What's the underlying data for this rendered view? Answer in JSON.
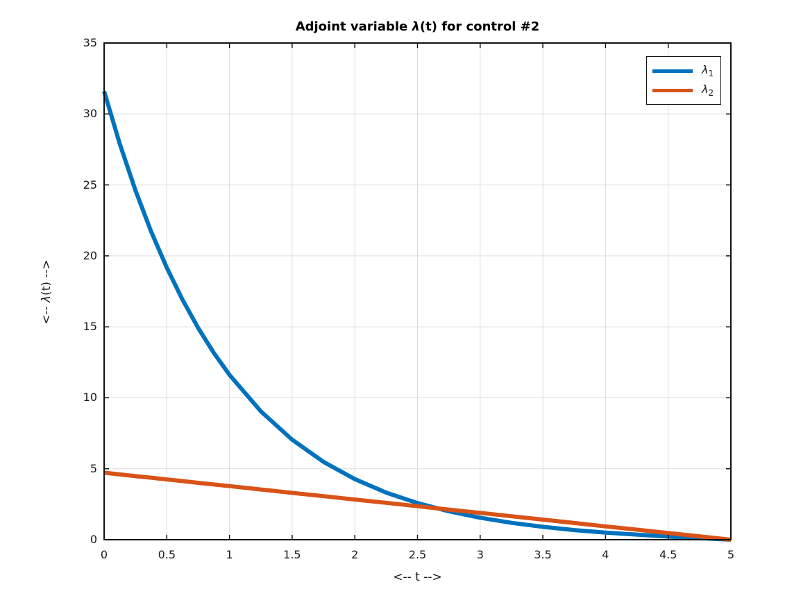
{
  "title": {
    "prefix": "Adjoint variable ",
    "lambda": "λ",
    "suffix": "(t) for control #2"
  },
  "axes": {
    "xlabel": "<-- t -->",
    "ylabel_prefix": "<-- ",
    "ylabel_lambda": "λ",
    "ylabel_suffix": "(t) -->"
  },
  "legend": {
    "position": "top-right",
    "items": [
      {
        "symbol": "λ",
        "sub": "1",
        "color": "#0072BD"
      },
      {
        "symbol": "λ",
        "sub": "2",
        "color": "#D95319"
      }
    ]
  },
  "colors": {
    "series1": "#0072BD",
    "series2": "#D95319",
    "grid": "#dcdcdc",
    "axis": "#111111",
    "text": "#1a1a1a",
    "background": "#ffffff"
  },
  "chart_data": {
    "type": "line",
    "title": "Adjoint variable λ(t) for control #2",
    "xlabel": "<-- t -->",
    "ylabel": "<-- λ(t) -->",
    "xlim": [
      0,
      5
    ],
    "ylim": [
      0,
      35
    ],
    "grid": true,
    "legend_position": "top-right",
    "x_ticks": [
      0,
      0.5,
      1,
      1.5,
      2,
      2.5,
      3,
      3.5,
      4,
      4.5,
      5
    ],
    "x_tick_labels": [
      "0",
      "0.5",
      "1",
      "1.5",
      "2",
      "2.5",
      "3",
      "3.5",
      "4",
      "4.5",
      "5"
    ],
    "y_ticks": [
      0,
      5,
      10,
      15,
      20,
      25,
      30,
      35
    ],
    "y_tick_labels": [
      "0",
      "5",
      "10",
      "15",
      "20",
      "25",
      "30",
      "35"
    ],
    "x": [
      0,
      0.125,
      0.25,
      0.375,
      0.5,
      0.625,
      0.75,
      0.875,
      1,
      1.25,
      1.5,
      1.75,
      2,
      2.25,
      2.5,
      2.75,
      3,
      3.25,
      3.5,
      3.75,
      4,
      4.25,
      4.5,
      4.75,
      5
    ],
    "series": [
      {
        "name": "lambda_1",
        "color": "#0072BD",
        "line_width": 6,
        "values": [
          31.6,
          27.89,
          24.61,
          21.72,
          19.17,
          16.92,
          14.93,
          13.17,
          11.62,
          9.05,
          7.05,
          5.49,
          4.27,
          3.32,
          2.58,
          2.0,
          1.55,
          1.19,
          0.91,
          0.68,
          0.5,
          0.36,
          0.22,
          0.11,
          0
        ]
      },
      {
        "name": "lambda_2",
        "color": "#D95319",
        "line_width": 6,
        "values": [
          4.72,
          4.6,
          4.48,
          4.37,
          4.25,
          4.13,
          4.01,
          3.89,
          3.78,
          3.54,
          3.3,
          3.07,
          2.83,
          2.6,
          2.36,
          2.12,
          1.89,
          1.65,
          1.42,
          1.18,
          0.94,
          0.71,
          0.47,
          0.24,
          0
        ]
      }
    ]
  }
}
